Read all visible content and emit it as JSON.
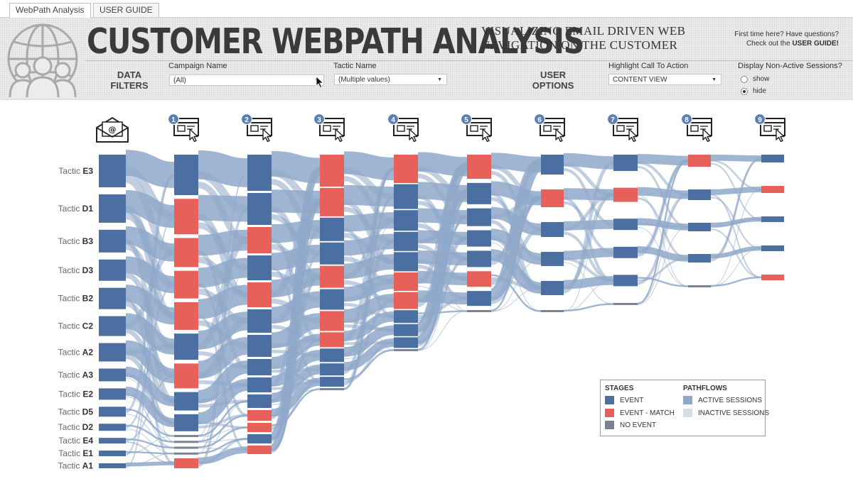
{
  "tabs": [
    "WebPath Analysis",
    "USER GUIDE"
  ],
  "header": {
    "title": "CUSTOMER WEBPATH ANALYSIS",
    "subtitle_line1": "VISUALIZING EMAIL DRIVEN WEB",
    "subtitle_line2": "NAVIGATION ON THE CUSTOMER",
    "help_line1": "First time here? Have questions?",
    "help_prefix": "Check out the ",
    "help_link": "USER GUIDE!"
  },
  "filters": {
    "section_line1": "DATA",
    "section_line2": "FILTERS",
    "campaign_label": "Campaign Name",
    "campaign_value": "(All)",
    "tactic_label": "Tactic Name",
    "tactic_value": "(Multiple values)"
  },
  "options": {
    "section_line1": "USER",
    "section_line2": "OPTIONS",
    "highlight_label": "Highlight Call To Action",
    "highlight_value": "CONTENT VIEW",
    "nonactive_label": "Display Non-Active Sessions?",
    "radio_show": "show",
    "radio_hide": "hide",
    "selected": "hide"
  },
  "colors": {
    "event": "#4a6fa0",
    "event_match": "#e8605a",
    "no_event": "#7b8294",
    "active_flow": "#8fa8c9",
    "inactive_flow": "#d9dde3"
  },
  "icons": [
    "email-icon",
    "web-page-click-icon"
  ],
  "chart_data": {
    "type": "sankey",
    "stage_numbers": [
      "1",
      "2",
      "3",
      "4",
      "5",
      "6",
      "7",
      "8",
      "9"
    ],
    "tactic_prefix": "Tactic",
    "tactics": [
      "E3",
      "D1",
      "B3",
      "D3",
      "B2",
      "C2",
      "A2",
      "A3",
      "E2",
      "D5",
      "D2",
      "E4",
      "E1",
      "A1"
    ],
    "stages": [
      [
        "e",
        "m",
        "m",
        "m",
        "m",
        "e",
        "m",
        "e",
        "e",
        "n",
        "n",
        "n",
        "n",
        "m"
      ],
      [
        "e",
        "e",
        "m",
        "e",
        "m",
        "e",
        "e",
        "e",
        "e",
        "e",
        "m",
        "m",
        "e",
        "m"
      ],
      [
        "m",
        "m",
        "e",
        "e",
        "m",
        "e",
        "m",
        "m",
        "e",
        "e",
        "e",
        "n"
      ],
      [
        "m",
        "e",
        "e",
        "e",
        "e",
        "m",
        "m",
        "e",
        "e",
        "e",
        "n"
      ],
      [
        "m",
        "e",
        "e",
        "e",
        "e",
        "m",
        "e",
        "n"
      ],
      [
        "e",
        "m",
        "e",
        "e",
        "e",
        "n"
      ],
      [
        "e",
        "m",
        "e",
        "e",
        "e",
        "n"
      ],
      [
        "m",
        "e",
        "e",
        "e",
        "n"
      ],
      [
        "e",
        "m",
        "e",
        "e",
        "m"
      ]
    ]
  },
  "legend": {
    "stages_title": "STAGES",
    "pathflows_title": "PATHFLOWS",
    "event": "EVENT",
    "event_match": "EVENT - MATCH",
    "no_event": "NO EVENT",
    "active": "ACTIVE SESSIONS",
    "inactive": "INACTIVE SESSIONS"
  }
}
